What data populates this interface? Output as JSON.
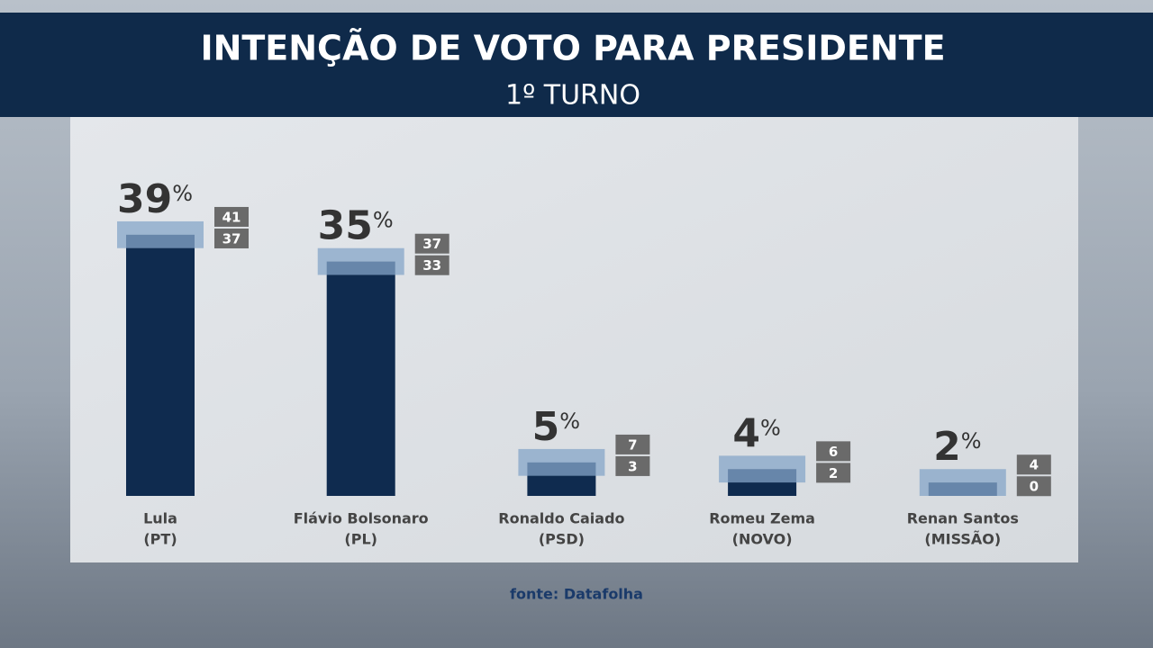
{
  "chart_data": {
    "type": "bar",
    "title": "INTENÇÃO DE VOTO PARA PRESIDENTE",
    "subtitle": "1º TURNO",
    "categories": [
      "Lula",
      "Flávio Bolsonaro",
      "Ronaldo Caiado",
      "Romeu Zema",
      "Renan Santos"
    ],
    "parties": [
      "(PT)",
      "(PL)",
      "(PSD)",
      "(NOVO)",
      "(MISSÃO)"
    ],
    "values": [
      39,
      35,
      5,
      4,
      2
    ],
    "unit": "%",
    "upper": [
      41,
      37,
      7,
      6,
      4
    ],
    "lower": [
      37,
      33,
      3,
      2,
      0
    ],
    "color": "#0f2b4f",
    "range_color": "#86a6c8",
    "source": "fonte: Datafolha"
  }
}
